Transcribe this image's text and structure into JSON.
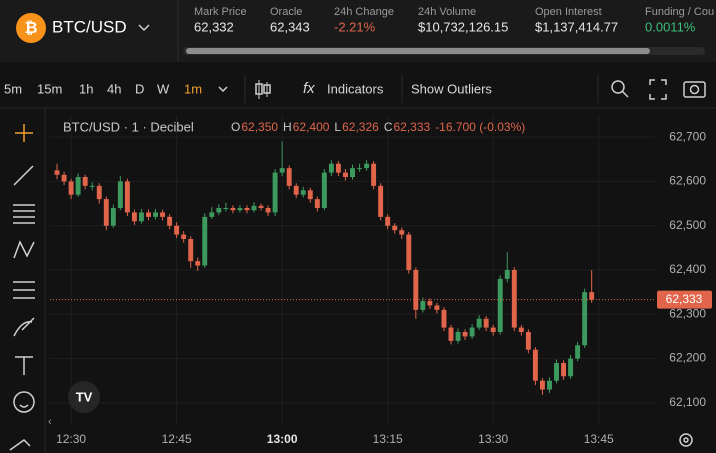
{
  "header": {
    "pair": "BTC/USD",
    "stats": [
      {
        "label": "Mark Price",
        "value": "62,332"
      },
      {
        "label": "Oracle",
        "value": "62,343"
      },
      {
        "label": "24h Change",
        "value": "-2.21%"
      },
      {
        "label": "24h Volume",
        "value": "$10,732,126.15"
      },
      {
        "label": "Open Interest",
        "value": "$1,137,414.77"
      },
      {
        "label": "Funding / Cou",
        "value": "0.0011%"
      }
    ]
  },
  "toolbar": {
    "intervals": [
      "5m",
      "15m",
      "1h",
      "4h",
      "D",
      "W",
      "1m"
    ],
    "indicators": "Indicators",
    "outliers": "Show Outliers"
  },
  "chart_data": {
    "type": "candlestick",
    "legend_title": "BTC/USD · 1 · Decibel",
    "legend_values": [
      {
        "label": "O",
        "value": "62,350"
      },
      {
        "label": "H",
        "value": "62,400"
      },
      {
        "label": "L",
        "value": "62,326"
      },
      {
        "label": "C",
        "value": "62,333"
      }
    ],
    "legend_change": "-16.700 (-0.03%)",
    "up_color": "#3d9a5e",
    "down_color": "#e0654b",
    "grid": true,
    "x": [
      "12:28",
      "12:29",
      "12:30",
      "12:31",
      "12:32",
      "12:33",
      "12:34",
      "12:35",
      "12:36",
      "12:37",
      "12:38",
      "12:39",
      "12:40",
      "12:41",
      "12:42",
      "12:43",
      "12:44",
      "12:45",
      "12:46",
      "12:47",
      "12:48",
      "12:49",
      "12:50",
      "12:51",
      "12:52",
      "12:53",
      "12:54",
      "12:55",
      "12:56",
      "12:57",
      "12:58",
      "12:59",
      "13:00",
      "13:01",
      "13:02",
      "13:03",
      "13:04",
      "13:05",
      "13:06",
      "13:07",
      "13:08",
      "13:09",
      "13:10",
      "13:11",
      "13:12",
      "13:13",
      "13:14",
      "13:15",
      "13:16",
      "13:17",
      "13:18",
      "13:19",
      "13:20",
      "13:21",
      "13:22",
      "13:23",
      "13:24",
      "13:25",
      "13:26",
      "13:27",
      "13:28",
      "13:29",
      "13:30",
      "13:31",
      "13:32",
      "13:33",
      "13:34",
      "13:35",
      "13:36",
      "13:37",
      "13:38",
      "13:39",
      "13:40",
      "13:41",
      "13:42",
      "13:43",
      "13:44"
    ],
    "ohlc": [
      [
        62625,
        62640,
        62605,
        62615
      ],
      [
        62615,
        62622,
        62592,
        62600
      ],
      [
        62600,
        62606,
        62560,
        62570
      ],
      [
        62570,
        62618,
        62565,
        62610
      ],
      [
        62610,
        62615,
        62582,
        62590
      ],
      [
        62590,
        62598,
        62580,
        62590
      ],
      [
        62590,
        62596,
        62550,
        62560
      ],
      [
        62560,
        62566,
        62490,
        62500
      ],
      [
        62500,
        62548,
        62495,
        62540
      ],
      [
        62540,
        62612,
        62535,
        62600
      ],
      [
        62600,
        62606,
        62522,
        62530
      ],
      [
        62530,
        62536,
        62502,
        62510
      ],
      [
        62510,
        62538,
        62505,
        62530
      ],
      [
        62530,
        62536,
        62512,
        62520
      ],
      [
        62520,
        62538,
        62514,
        62530
      ],
      [
        62530,
        62536,
        62512,
        62520
      ],
      [
        62520,
        62526,
        62492,
        62500
      ],
      [
        62500,
        62508,
        62472,
        62480
      ],
      [
        62480,
        62488,
        62462,
        62470
      ],
      [
        62470,
        62476,
        62405,
        62420
      ],
      [
        62420,
        62428,
        62398,
        62410
      ],
      [
        62410,
        62528,
        62405,
        62520
      ],
      [
        62520,
        62542,
        62515,
        62530
      ],
      [
        62530,
        62548,
        62524,
        62540
      ],
      [
        62540,
        62552,
        62532,
        62540
      ],
      [
        62540,
        62546,
        62528,
        62535
      ],
      [
        62535,
        62547,
        62530,
        62540
      ],
      [
        62540,
        62546,
        62528,
        62535
      ],
      [
        62535,
        62553,
        62530,
        62545
      ],
      [
        62545,
        62550,
        62534,
        62540
      ],
      [
        62540,
        62546,
        62522,
        62530
      ],
      [
        62530,
        62628,
        62522,
        62620
      ],
      [
        62620,
        62690,
        62612,
        62630
      ],
      [
        62630,
        62636,
        62582,
        62590
      ],
      [
        62590,
        62596,
        62562,
        62570
      ],
      [
        62570,
        62588,
        62564,
        62580
      ],
      [
        62580,
        62586,
        62552,
        62560
      ],
      [
        62560,
        62566,
        62532,
        62540
      ],
      [
        62540,
        62628,
        62535,
        62620
      ],
      [
        62620,
        62648,
        62612,
        62640
      ],
      [
        62640,
        62646,
        62612,
        62620
      ],
      [
        62620,
        62628,
        62602,
        62610
      ],
      [
        62610,
        62638,
        62604,
        62630
      ],
      [
        62630,
        62640,
        62622,
        62630
      ],
      [
        62630,
        62648,
        62624,
        62640
      ],
      [
        62640,
        62646,
        62582,
        62590
      ],
      [
        62590,
        62596,
        62512,
        62520
      ],
      [
        62520,
        62526,
        62492,
        62500
      ],
      [
        62500,
        62506,
        62482,
        62490
      ],
      [
        62490,
        62496,
        62470,
        62480
      ],
      [
        62480,
        62486,
        62392,
        62400
      ],
      [
        62400,
        62406,
        62290,
        62310
      ],
      [
        62310,
        62338,
        62304,
        62330
      ],
      [
        62330,
        62336,
        62312,
        62320
      ],
      [
        62320,
        62326,
        62302,
        62310
      ],
      [
        62310,
        62316,
        62262,
        62270
      ],
      [
        62270,
        62276,
        62232,
        62240
      ],
      [
        62240,
        62268,
        62234,
        62260
      ],
      [
        62260,
        62266,
        62242,
        62250
      ],
      [
        62250,
        62278,
        62244,
        62270
      ],
      [
        62270,
        62298,
        62264,
        62290
      ],
      [
        62290,
        62296,
        62262,
        62270
      ],
      [
        62270,
        62276,
        62252,
        62260
      ],
      [
        62260,
        62388,
        62254,
        62380
      ],
      [
        62380,
        62440,
        62372,
        62400
      ],
      [
        62400,
        62406,
        62262,
        62270
      ],
      [
        62270,
        62276,
        62252,
        62260
      ],
      [
        62260,
        62266,
        62212,
        62220
      ],
      [
        62220,
        62226,
        62140,
        62150
      ],
      [
        62150,
        62156,
        62118,
        62130
      ],
      [
        62130,
        62158,
        62122,
        62150
      ],
      [
        62150,
        62198,
        62144,
        62190
      ],
      [
        62190,
        62196,
        62152,
        62160
      ],
      [
        62160,
        62208,
        62154,
        62200
      ],
      [
        62200,
        62238,
        62194,
        62230
      ],
      [
        62230,
        62358,
        62224,
        62350
      ],
      [
        62350,
        62400,
        62326,
        62333
      ]
    ],
    "xlim": [
      "12:27",
      "13:53"
    ],
    "xticks": [
      "12:30",
      "12:45",
      "13:00",
      "13:15",
      "13:30",
      "13:45"
    ],
    "ylim": [
      62050,
      62750
    ],
    "yticks": [
      {
        "value": 62100,
        "label": "62,100"
      },
      {
        "value": 62200,
        "label": "62,200"
      },
      {
        "value": 62300,
        "label": "62,300"
      },
      {
        "value": 62400,
        "label": "62,400"
      },
      {
        "value": 62500,
        "label": "62,500"
      },
      {
        "value": 62600,
        "label": "62,600"
      },
      {
        "value": 62700,
        "label": "62,700"
      }
    ],
    "price_line": {
      "value": 62333,
      "label": "62,333"
    }
  }
}
